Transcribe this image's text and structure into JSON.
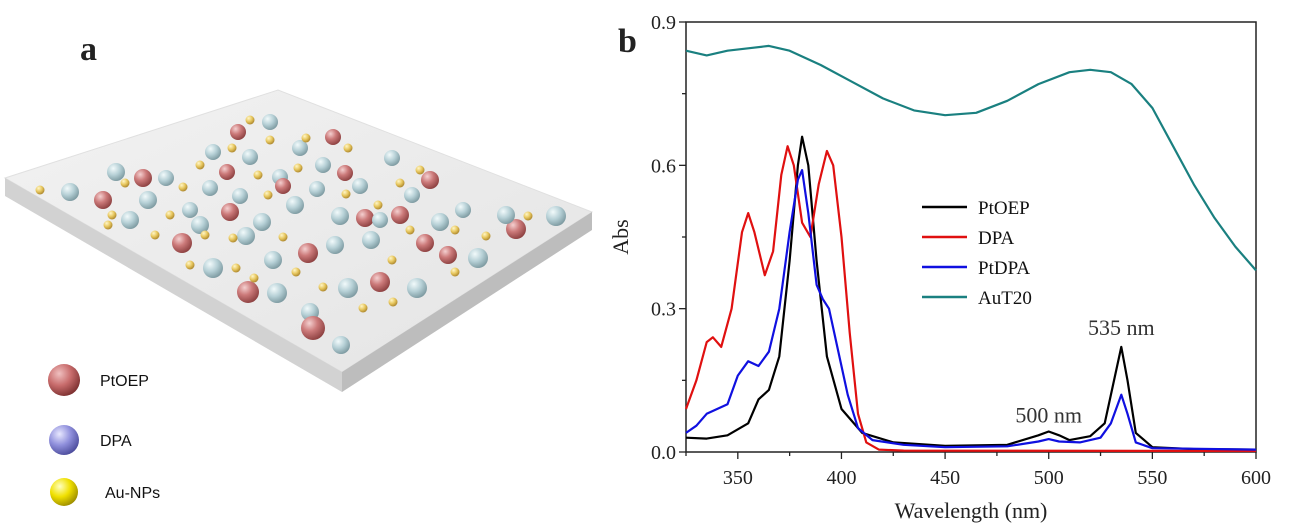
{
  "panel_a": {
    "label": "a",
    "legend": [
      {
        "label": "PtOEP",
        "color": "#c86c6c"
      },
      {
        "label": "DPA",
        "color": "#8a8ad8"
      },
      {
        "label": "Au-NPs",
        "color": "#e6d000"
      }
    ]
  },
  "chart_data": {
    "type": "line",
    "panel_label": "b",
    "xlabel": "Wavelength (nm)",
    "ylabel": "Abs",
    "xlim": [
      325,
      600
    ],
    "ylim": [
      0.0,
      0.9
    ],
    "xticks": [
      350,
      400,
      450,
      500,
      550,
      600
    ],
    "yticks": [
      0.0,
      0.3,
      0.6,
      0.9
    ],
    "ytick_labels": [
      "0.0",
      "0.3",
      "0.6",
      "0.9"
    ],
    "legend_position": "center-right",
    "annotations": [
      {
        "text": "535 nm",
        "x": 535,
        "y": 0.245
      },
      {
        "text": "500 nm",
        "x": 500,
        "y": 0.062
      }
    ],
    "series": [
      {
        "name": "PtOEP",
        "color": "#000000",
        "points": [
          [
            325,
            0.03
          ],
          [
            335,
            0.028
          ],
          [
            345,
            0.035
          ],
          [
            355,
            0.06
          ],
          [
            360,
            0.11
          ],
          [
            365,
            0.13
          ],
          [
            370,
            0.2
          ],
          [
            375,
            0.4
          ],
          [
            379,
            0.6
          ],
          [
            381,
            0.66
          ],
          [
            384,
            0.6
          ],
          [
            388,
            0.4
          ],
          [
            393,
            0.2
          ],
          [
            400,
            0.09
          ],
          [
            410,
            0.04
          ],
          [
            425,
            0.02
          ],
          [
            450,
            0.013
          ],
          [
            480,
            0.015
          ],
          [
            495,
            0.035
          ],
          [
            500,
            0.043
          ],
          [
            505,
            0.035
          ],
          [
            510,
            0.025
          ],
          [
            520,
            0.033
          ],
          [
            527,
            0.06
          ],
          [
            531,
            0.14
          ],
          [
            535,
            0.22
          ],
          [
            538,
            0.15
          ],
          [
            542,
            0.04
          ],
          [
            550,
            0.01
          ],
          [
            570,
            0.006
          ],
          [
            600,
            0.005
          ]
        ]
      },
      {
        "name": "DPA",
        "color": "#e01010",
        "points": [
          [
            325,
            0.09
          ],
          [
            330,
            0.15
          ],
          [
            335,
            0.23
          ],
          [
            338,
            0.24
          ],
          [
            342,
            0.22
          ],
          [
            347,
            0.3
          ],
          [
            352,
            0.46
          ],
          [
            355,
            0.5
          ],
          [
            358,
            0.46
          ],
          [
            363,
            0.37
          ],
          [
            367,
            0.42
          ],
          [
            371,
            0.58
          ],
          [
            374,
            0.64
          ],
          [
            377,
            0.6
          ],
          [
            381,
            0.48
          ],
          [
            385,
            0.45
          ],
          [
            389,
            0.56
          ],
          [
            393,
            0.63
          ],
          [
            396,
            0.6
          ],
          [
            400,
            0.45
          ],
          [
            404,
            0.25
          ],
          [
            408,
            0.08
          ],
          [
            412,
            0.02
          ],
          [
            418,
            0.005
          ],
          [
            430,
            0.003
          ],
          [
            600,
            0.002
          ]
        ]
      },
      {
        "name": "PtDPA",
        "color": "#1010e0",
        "points": [
          [
            325,
            0.04
          ],
          [
            330,
            0.055
          ],
          [
            335,
            0.08
          ],
          [
            340,
            0.09
          ],
          [
            345,
            0.1
          ],
          [
            350,
            0.16
          ],
          [
            355,
            0.19
          ],
          [
            360,
            0.18
          ],
          [
            365,
            0.21
          ],
          [
            370,
            0.3
          ],
          [
            375,
            0.46
          ],
          [
            379,
            0.57
          ],
          [
            381,
            0.59
          ],
          [
            384,
            0.5
          ],
          [
            388,
            0.35
          ],
          [
            391,
            0.32
          ],
          [
            394,
            0.3
          ],
          [
            398,
            0.22
          ],
          [
            403,
            0.12
          ],
          [
            408,
            0.05
          ],
          [
            415,
            0.025
          ],
          [
            430,
            0.015
          ],
          [
            450,
            0.01
          ],
          [
            480,
            0.012
          ],
          [
            495,
            0.022
          ],
          [
            500,
            0.027
          ],
          [
            505,
            0.022
          ],
          [
            515,
            0.02
          ],
          [
            525,
            0.03
          ],
          [
            530,
            0.06
          ],
          [
            535,
            0.12
          ],
          [
            538,
            0.08
          ],
          [
            542,
            0.02
          ],
          [
            550,
            0.008
          ],
          [
            600,
            0.005
          ]
        ]
      },
      {
        "name": "AuT20",
        "color": "#1a8080",
        "points": [
          [
            325,
            0.84
          ],
          [
            335,
            0.83
          ],
          [
            345,
            0.84
          ],
          [
            355,
            0.845
          ],
          [
            365,
            0.85
          ],
          [
            375,
            0.84
          ],
          [
            390,
            0.81
          ],
          [
            405,
            0.775
          ],
          [
            420,
            0.74
          ],
          [
            435,
            0.715
          ],
          [
            450,
            0.705
          ],
          [
            465,
            0.71
          ],
          [
            480,
            0.735
          ],
          [
            495,
            0.77
          ],
          [
            510,
            0.795
          ],
          [
            520,
            0.8
          ],
          [
            530,
            0.795
          ],
          [
            540,
            0.77
          ],
          [
            550,
            0.72
          ],
          [
            560,
            0.64
          ],
          [
            570,
            0.56
          ],
          [
            580,
            0.49
          ],
          [
            590,
            0.43
          ],
          [
            600,
            0.38
          ]
        ]
      }
    ]
  }
}
